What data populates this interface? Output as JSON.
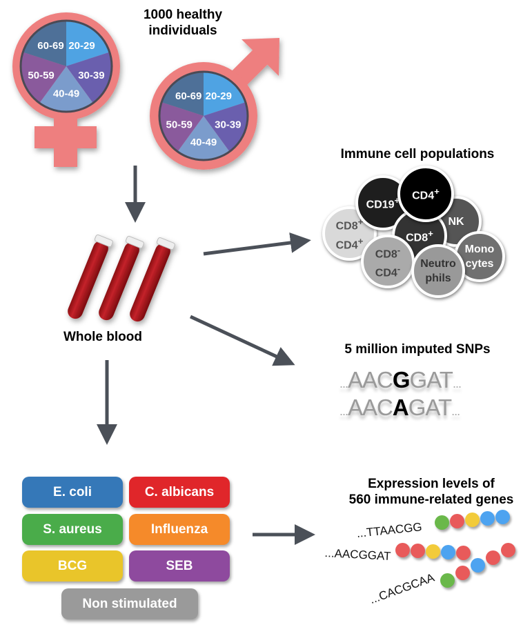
{
  "cohort": {
    "title_line1": "1000 healthy",
    "title_line2": "individuals",
    "age_groups": [
      "20-29",
      "30-39",
      "40-49",
      "50-59",
      "60-69"
    ],
    "age_colors": [
      "#4fa3e3",
      "#6a5fae",
      "#7b9ccc",
      "#8a5a9c",
      "#4e7098"
    ],
    "symbol_color": "#ee7f7f"
  },
  "blood": {
    "label": "Whole blood"
  },
  "immune": {
    "title": "Immune cell populations",
    "cells": [
      {
        "label": "CD19",
        "sup": "+"
      },
      {
        "label": "CD4",
        "sup": "+"
      },
      {
        "label": "NK",
        "sup": ""
      },
      {
        "label": "CD8",
        "sup": "+"
      },
      {
        "label": "CD8",
        "sup": "+",
        "label2": "CD4",
        "sup2": "+"
      },
      {
        "label": "CD8",
        "sup": "-",
        "label2": "CD4",
        "sup2": "-"
      },
      {
        "label": "Neutro",
        "label2": "phils"
      },
      {
        "label": "Mono",
        "label2": "cytes"
      }
    ]
  },
  "snps": {
    "title": "5 million imputed SNPs",
    "row1": {
      "prefix": "AAC",
      "allele": "G",
      "suffix": "GAT"
    },
    "row2": {
      "prefix": "AAC",
      "allele": "A",
      "suffix": "GAT"
    },
    "ellipsis": "..."
  },
  "stimuli": [
    {
      "label": "E. coli",
      "color": "#3578b8"
    },
    {
      "label": "C. albicans",
      "color": "#e0262a"
    },
    {
      "label": "S. aureus",
      "color": "#4aac4a"
    },
    {
      "label": "Influenza",
      "color": "#f58a2a"
    },
    {
      "label": "BCG",
      "color": "#e9c52a"
    },
    {
      "label": "SEB",
      "color": "#8e4a9e"
    },
    {
      "label": "Non stimulated",
      "color": "#9a9a9a"
    }
  ],
  "expression": {
    "title_line1": "Expression levels of",
    "title_line2": "560 immune-related genes",
    "sequences": [
      "...TTAACGG",
      "...AACGGAT",
      "...CACGCAA"
    ],
    "bead_colors": {
      "green": "#6ab84a",
      "red": "#e85a5a",
      "yellow": "#f2cb3a",
      "blue": "#4da3f0"
    }
  }
}
